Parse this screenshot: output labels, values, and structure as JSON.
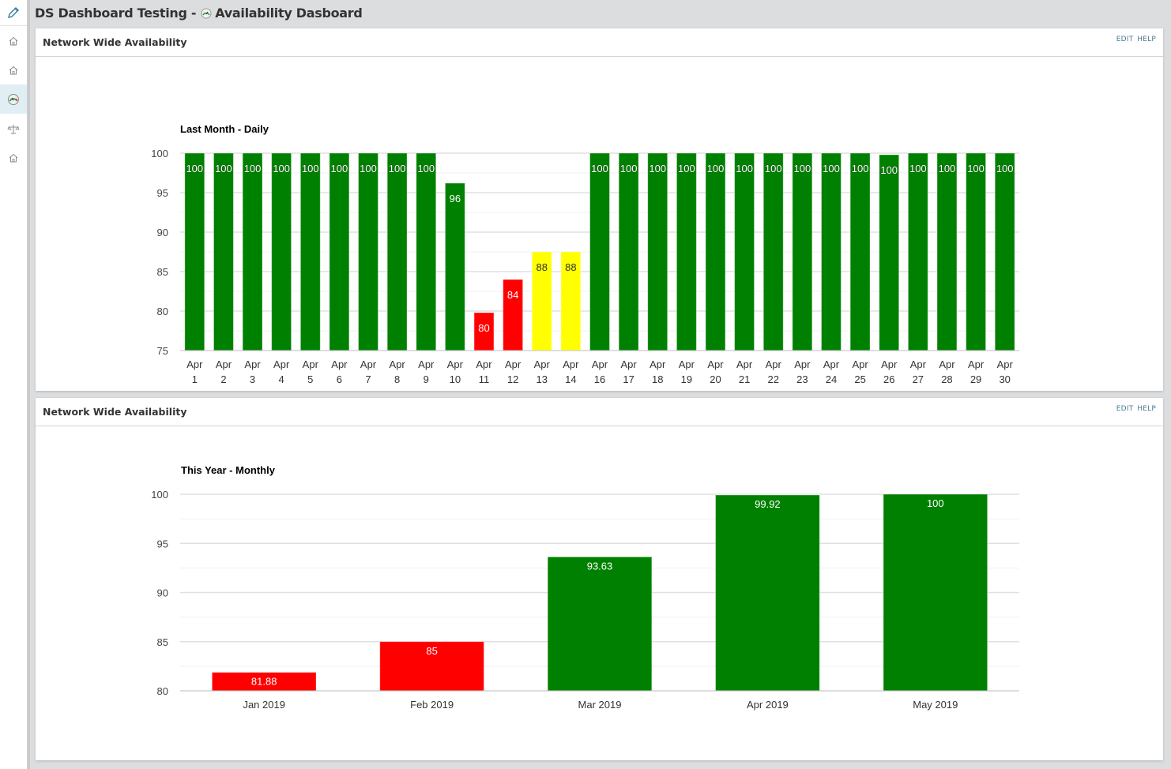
{
  "header": {
    "title_prefix": "DS Dashboard Testing -",
    "title_main": "Availability Dasboard"
  },
  "sidebar": {
    "items": [
      {
        "icon": "home-icon"
      },
      {
        "icon": "home-icon"
      },
      {
        "icon": "gauge-icon",
        "active": true
      },
      {
        "icon": "scale-icon"
      },
      {
        "icon": "home-icon"
      }
    ]
  },
  "panels": [
    {
      "title": "Network Wide Availability",
      "edit": "EDIT",
      "help": "HELP"
    },
    {
      "title": "Network Wide Availability",
      "edit": "EDIT",
      "help": "HELP"
    }
  ],
  "colors": {
    "green": "#008000",
    "red": "#ff0000",
    "yellow": "#ffff00",
    "grid": "#e6e6e6"
  },
  "chart_data": [
    {
      "type": "bar",
      "title": "Last Month - Daily",
      "xlabel": "",
      "ylabel": "",
      "ylim": [
        75,
        100
      ],
      "yticks": [
        100,
        95,
        90,
        85,
        80,
        75
      ],
      "grid": true,
      "categories": [
        "Apr 1",
        "Apr 2",
        "Apr 3",
        "Apr 4",
        "Apr 5",
        "Apr 6",
        "Apr 7",
        "Apr 8",
        "Apr 9",
        "Apr 10",
        "Apr 11",
        "Apr 12",
        "Apr 13",
        "Apr 14",
        "Apr 16",
        "Apr 17",
        "Apr 18",
        "Apr 19",
        "Apr 20",
        "Apr 21",
        "Apr 22",
        "Apr 23",
        "Apr 24",
        "Apr 25",
        "Apr 26",
        "Apr 27",
        "Apr 28",
        "Apr 29",
        "Apr 30"
      ],
      "values": [
        100,
        100,
        100,
        100,
        100,
        100,
        100,
        100,
        100,
        96.2,
        79.8,
        84,
        87.5,
        87.5,
        100,
        100,
        100,
        100,
        100,
        100,
        100,
        100,
        100,
        100,
        99.8,
        100,
        100,
        100,
        100
      ],
      "labels": [
        "100",
        "100",
        "100",
        "100",
        "100",
        "100",
        "100",
        "100",
        "100",
        "96",
        "80",
        "84",
        "88",
        "88",
        "100",
        "100",
        "100",
        "100",
        "100",
        "100",
        "100",
        "100",
        "100",
        "100",
        "100",
        "100",
        "100",
        "100",
        "100"
      ],
      "bar_colors": [
        "green",
        "green",
        "green",
        "green",
        "green",
        "green",
        "green",
        "green",
        "green",
        "green",
        "red",
        "red",
        "yellow",
        "yellow",
        "green",
        "green",
        "green",
        "green",
        "green",
        "green",
        "green",
        "green",
        "green",
        "green",
        "green",
        "green",
        "green",
        "green",
        "green"
      ]
    },
    {
      "type": "bar",
      "title": "This Year - Monthly",
      "xlabel": "",
      "ylabel": "",
      "ylim": [
        80,
        100
      ],
      "yticks": [
        100,
        95,
        90,
        85,
        80
      ],
      "grid": true,
      "categories": [
        "Jan 2019",
        "Feb 2019",
        "Mar 2019",
        "Apr 2019",
        "May 2019"
      ],
      "values": [
        81.88,
        85,
        93.63,
        99.92,
        100
      ],
      "labels": [
        "81.88",
        "85",
        "93.63",
        "99.92",
        "100"
      ],
      "bar_colors": [
        "red",
        "red",
        "green",
        "green",
        "green"
      ]
    }
  ]
}
